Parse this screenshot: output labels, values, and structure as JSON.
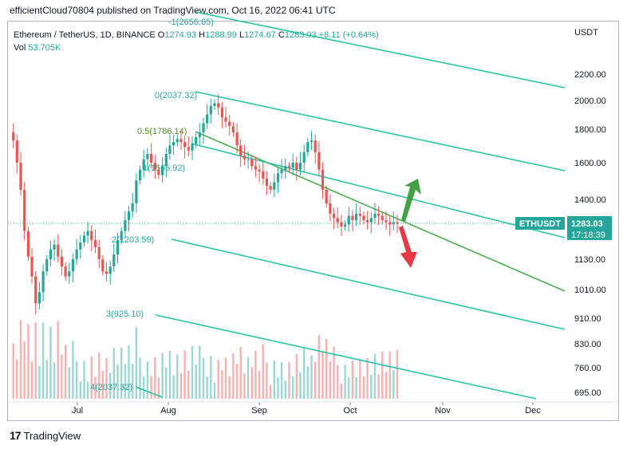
{
  "header": {
    "publisher": "efficientCloud70804 published on TradingView.com, Oct 16, 2022 06:41 UTC"
  },
  "legend": {
    "symbol": "Ethereum / TetherUS, 1D, BINANCE",
    "o_label": "O",
    "o": "1274.93",
    "h_label": "H",
    "h": "1288.99",
    "l_label": "L",
    "l": "1274.67",
    "c_label": "C",
    "c": "1283.03",
    "change": "+8.11 (+0.64%)",
    "vol_label": "Vol",
    "vol": "53.705K"
  },
  "colors": {
    "up": "#26a69a",
    "down": "#ef5350",
    "channel": "#26c6a6",
    "median": "#4caf50",
    "arrow_up": "#43a047",
    "arrow_down": "#e53945"
  },
  "footer": {
    "brand": "TradingView"
  },
  "chart_data": {
    "type": "candlestick",
    "currency": "USDT",
    "y_ticks": [
      "2200.00",
      "2000.00",
      "1800.00",
      "1600.00",
      "1400.00",
      "1130.00",
      "1010.00",
      "910.00",
      "830.00",
      "760.00",
      "695.00"
    ],
    "x_ticks": [
      "Jul",
      "Aug",
      "Sep",
      "Oct",
      "Nov",
      "Dec"
    ],
    "last_price_tag": {
      "symbol": "ETHUSDT",
      "price": "1283.03",
      "countdown": "17:18:39"
    },
    "fib_levels": [
      {
        "label": "-1(2656.65)"
      },
      {
        "label": "0(2037.32)"
      },
      {
        "label": "0.5(1786.14)"
      },
      {
        "label": "1(1565.92)"
      },
      {
        "label": "2(1203.59)"
      },
      {
        "label": "3(925.10)"
      },
      {
        "label": "4(2037.32)"
      }
    ],
    "price_path": [
      1780,
      1730,
      1600,
      1450,
      1250,
      1140,
      1060,
      960,
      1000,
      1080,
      1130,
      1170,
      1190,
      1140,
      1100,
      1060,
      1080,
      1130,
      1170,
      1200,
      1230,
      1250,
      1210,
      1180,
      1130,
      1080,
      1070,
      1100,
      1150,
      1210,
      1250,
      1300,
      1340,
      1380,
      1500,
      1560,
      1620,
      1650,
      1600,
      1560,
      1530,
      1580,
      1650,
      1700,
      1720,
      1740,
      1720,
      1690,
      1670,
      1710,
      1750,
      1780,
      1840,
      1900,
      1960,
      1980,
      1950,
      1880,
      1850,
      1820,
      1780,
      1700,
      1640,
      1620,
      1620,
      1580,
      1560,
      1550,
      1510,
      1470,
      1450,
      1490,
      1540,
      1560,
      1580,
      1570,
      1600,
      1560,
      1600,
      1660,
      1720,
      1730,
      1660,
      1560,
      1450,
      1380,
      1330,
      1310,
      1290,
      1270,
      1280,
      1320,
      1300,
      1330,
      1320,
      1300,
      1290,
      1310,
      1330,
      1320,
      1300,
      1290,
      1280,
      1290,
      1283
    ]
  }
}
